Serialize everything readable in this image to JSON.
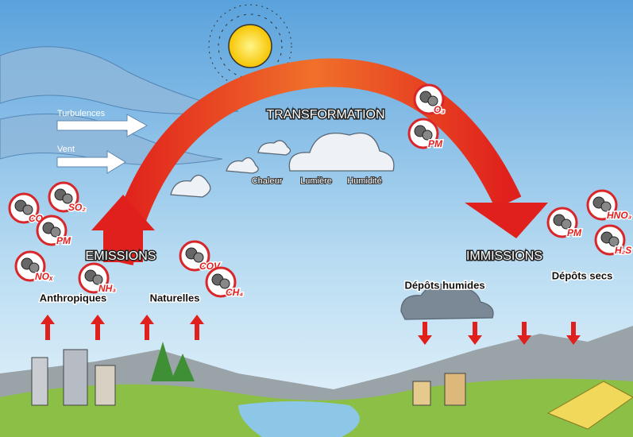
{
  "atmosphere": {
    "wind_labels": [
      "Turbulences",
      "Vent"
    ],
    "transformation": {
      "title": "TRANSFORMATION",
      "factors": [
        "Chaleur",
        "Lumière",
        "Humidité"
      ],
      "products": [
        "O₃",
        "PM"
      ]
    }
  },
  "emissions": {
    "title": "EMISSIONS",
    "sources": [
      "Anthropiques",
      "Naturelles"
    ],
    "pollutants": [
      "CO₂",
      "SO₂",
      "PM",
      "NOₓ",
      "NH₃",
      "COV",
      "CH₄"
    ]
  },
  "immissions": {
    "title": "IMMISSIONS",
    "deposits": [
      "Dépôts humides",
      "Dépôts secs"
    ],
    "pollutants": [
      "PM",
      "HNO₃",
      "H₂S"
    ]
  }
}
